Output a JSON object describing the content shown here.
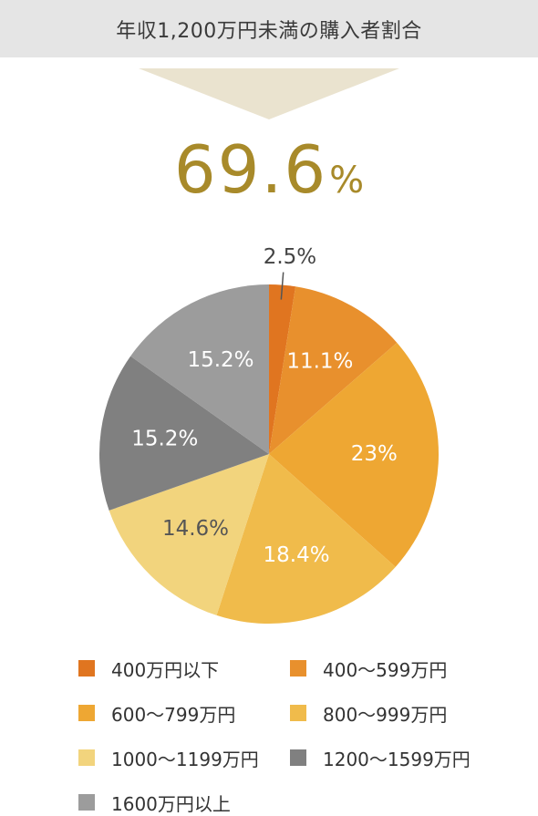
{
  "header": {
    "title": "年収1,200万円未満の購入者割合"
  },
  "headline": {
    "value": "69.6",
    "unit": "%"
  },
  "colors": {
    "header_bg": "#e5e5e5",
    "arrow": "#eae3cf",
    "headline": "#a88a2a"
  },
  "chart_data": {
    "type": "pie",
    "title": "",
    "start": "12 o'clock",
    "direction": "clockwise",
    "legend_placement": "bottom",
    "slices": [
      {
        "label": "400万円以下",
        "value": 2.5,
        "display": "2.5%",
        "color": "#e07520"
      },
      {
        "label": "400〜599万円",
        "value": 11.1,
        "display": "11.1%",
        "color": "#e8902d"
      },
      {
        "label": "600〜799万円",
        "value": 23,
        "display": "23%",
        "color": "#eea733"
      },
      {
        "label": "800〜999万円",
        "value": 18.4,
        "display": "18.4%",
        "color": "#f0bb4b"
      },
      {
        "label": "1000〜1199万円",
        "value": 14.6,
        "display": "14.6%",
        "color": "#f2d47d"
      },
      {
        "label": "1200〜1599万円",
        "value": 15.2,
        "display": "15.2%",
        "color": "#808080"
      },
      {
        "label": "1600万円以上",
        "value": 15.2,
        "display": "15.2%",
        "color": "#9c9c9c"
      }
    ]
  }
}
